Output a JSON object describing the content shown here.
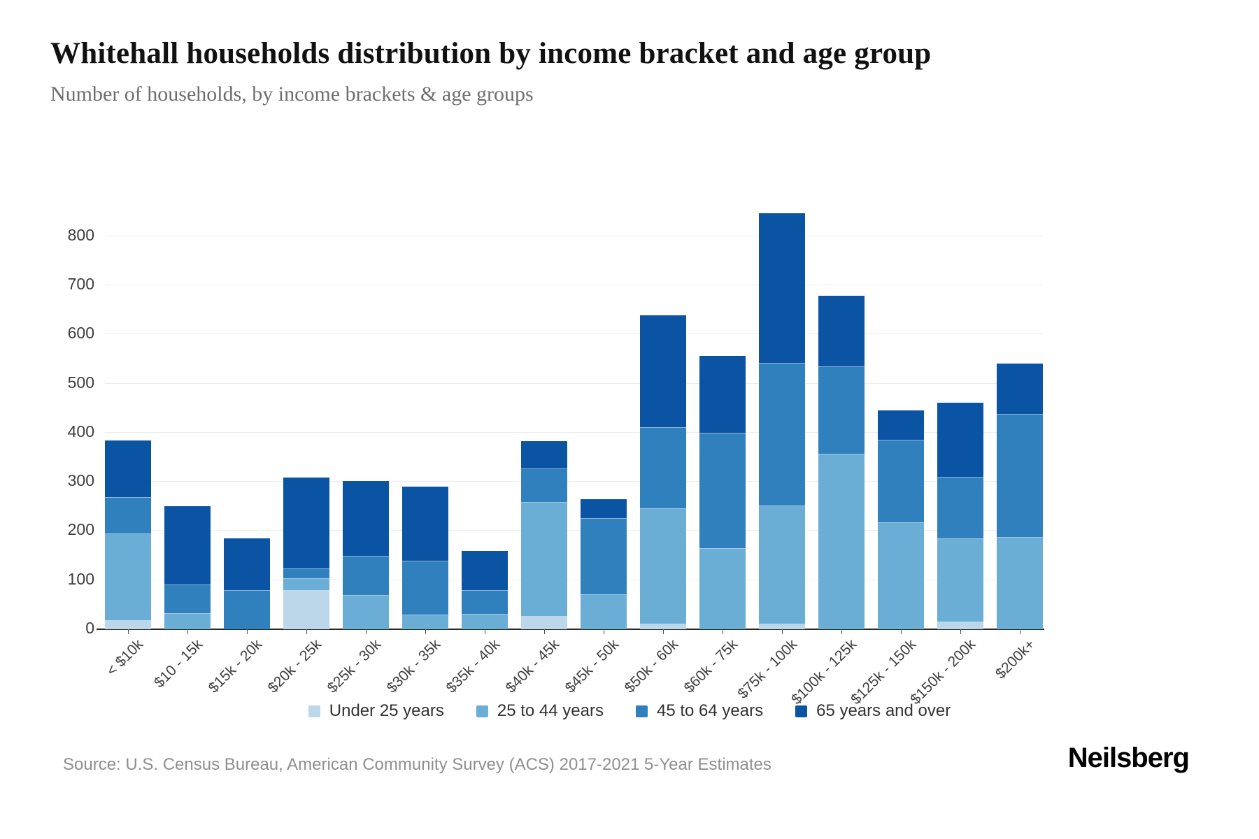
{
  "header": {
    "title": "Whitehall households distribution by income bracket and age group",
    "subtitle": "Number of households, by income brackets & age groups"
  },
  "chart_data": {
    "type": "bar",
    "stacked": true,
    "title": "Whitehall households distribution by income bracket and age group",
    "subtitle": "Number of households, by income brackets & age groups",
    "categories": [
      "< $10k",
      "$10 - 15k",
      "$15k - 20k",
      "$20k - 25k",
      "$25k - 30k",
      "$30k - 35k",
      "$35k - 40k",
      "$40k - 45k",
      "$45k - 50k",
      "$50k - 60k",
      "$60k - 75k",
      "$75k - 100k",
      "$100k - 125k",
      "$125k - 150k",
      "$150k - 200k",
      "$200k+"
    ],
    "series": [
      {
        "name": "Under 25 years",
        "color": "#bcd6ea",
        "values": [
          17,
          0,
          0,
          79,
          0,
          0,
          0,
          25,
          0,
          10,
          0,
          10,
          0,
          0,
          15,
          0
        ]
      },
      {
        "name": "25 to 44 years",
        "color": "#6aaed6",
        "values": [
          176,
          31,
          0,
          23,
          68,
          28,
          30,
          232,
          70,
          235,
          164,
          240,
          355,
          216,
          169,
          186
        ]
      },
      {
        "name": "45 to 64 years",
        "color": "#2f80bd",
        "values": [
          74,
          59,
          78,
          20,
          80,
          110,
          48,
          69,
          155,
          165,
          235,
          290,
          178,
          168,
          125,
          251
        ]
      },
      {
        "name": "65 years and over",
        "color": "#0b54a4",
        "values": [
          117,
          160,
          107,
          186,
          154,
          152,
          82,
          56,
          40,
          229,
          157,
          306,
          145,
          61,
          152,
          104
        ]
      }
    ],
    "totals": [
      384,
      250,
      185,
      308,
      302,
      290,
      160,
      382,
      265,
      639,
      556,
      846,
      678,
      445,
      461,
      541
    ],
    "xlabel": "",
    "ylabel": "",
    "ylim": [
      0,
      800
    ],
    "ytick_step": 100,
    "grid": true,
    "legend_position": "bottom"
  },
  "footer": {
    "source": "Source: U.S. Census Bureau, American Community Survey (ACS) 2017-2021 5-Year Estimates",
    "brand": "Neilsberg"
  },
  "colors": {
    "axis": "#262626",
    "grid": "#ededed",
    "title_text": "#111111",
    "subtitle_text": "#6e6e6e",
    "tick_label": "#3f3f3f",
    "source_text": "#8f8f8f"
  }
}
